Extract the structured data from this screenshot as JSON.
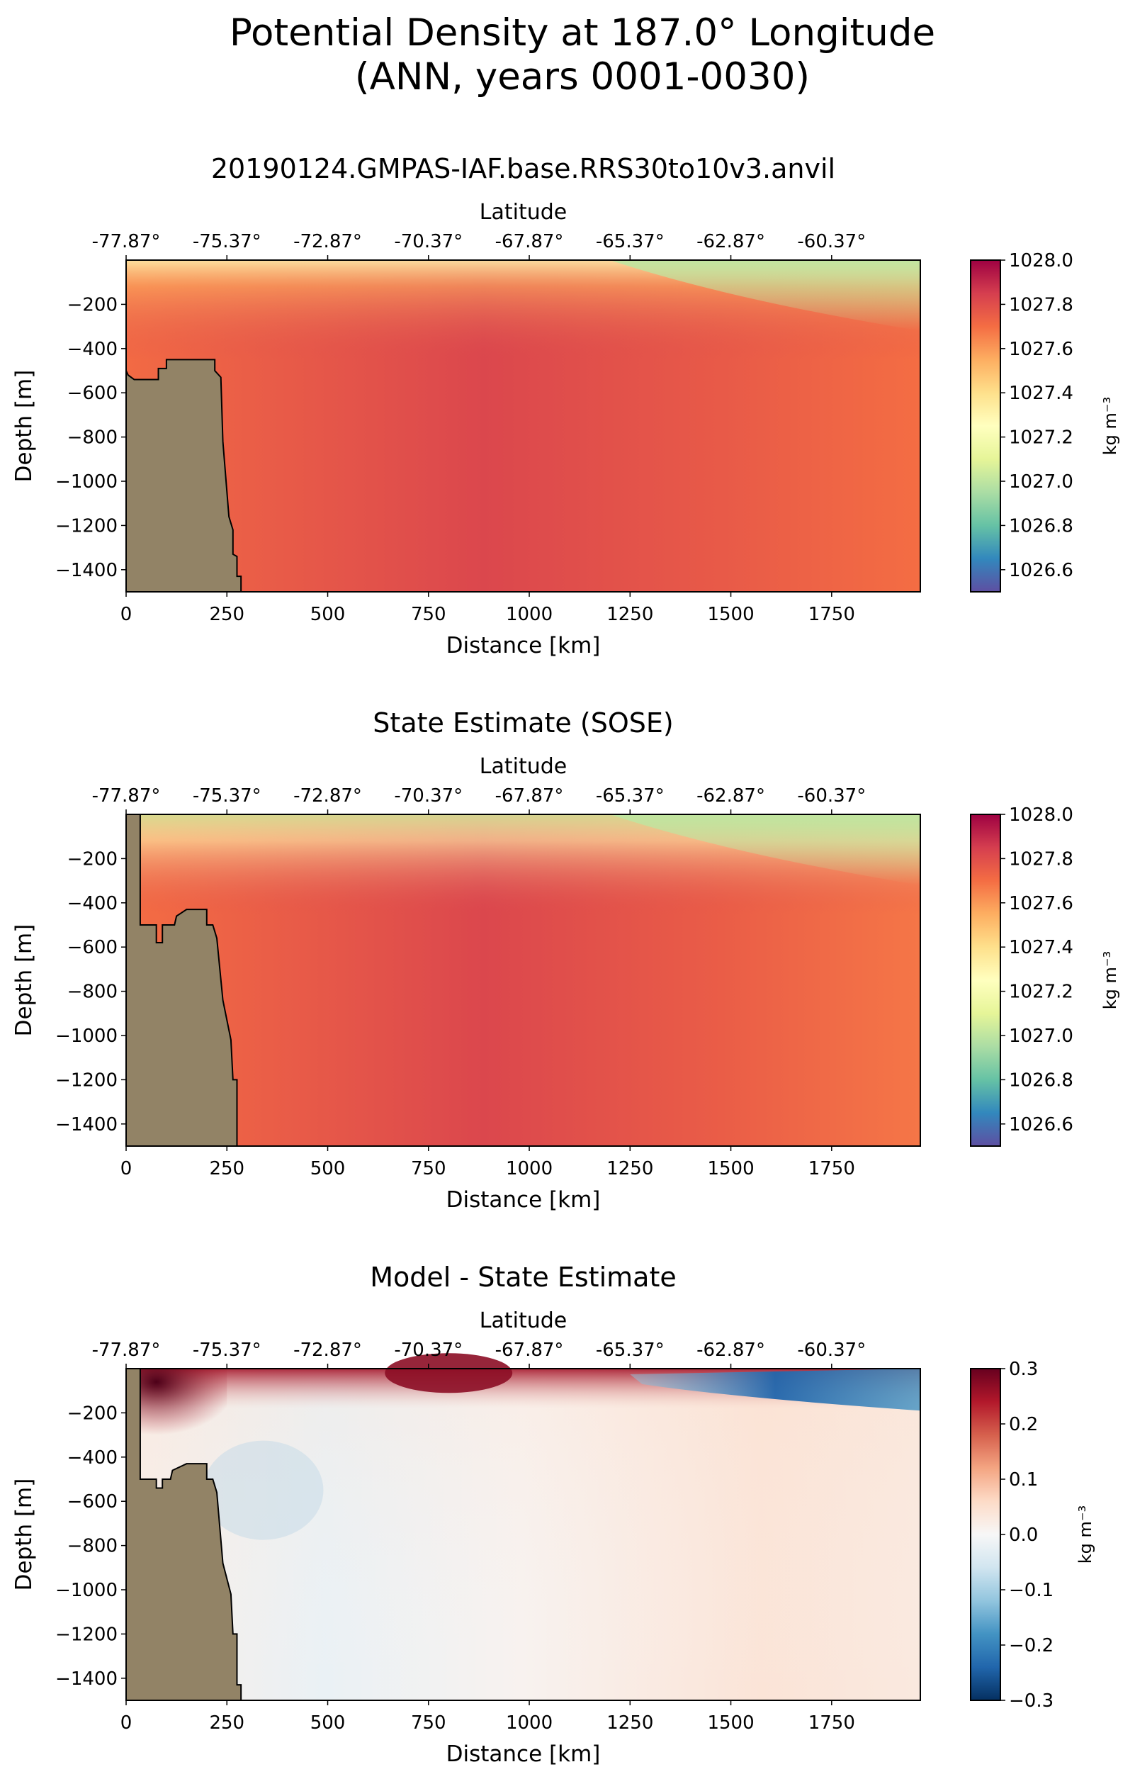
{
  "figure": {
    "title_line1": "Potential Density at 187.0° Longitude",
    "title_line2": "(ANN, years 0001-0030)"
  },
  "chart_data": [
    {
      "type": "heatmap",
      "title": "20190124.GMPAS-IAF.base.RRS30to10v3.anvil",
      "xlabel": "Distance [km]",
      "ylabel": "Depth [m]",
      "top_xlabel": "Latitude",
      "xlim": [
        0,
        1970
      ],
      "ylim": [
        -1500,
        0
      ],
      "xticks": [
        0,
        250,
        500,
        750,
        1000,
        1250,
        1500,
        1750
      ],
      "xtick_labels": [
        "0",
        "250",
        "500",
        "750",
        "1000",
        "1250",
        "1500",
        "1750"
      ],
      "yticks": [
        -200,
        -400,
        -600,
        -800,
        -1000,
        -1200,
        -1400
      ],
      "ytick_labels": [
        "−200",
        "−400",
        "−600",
        "−800",
        "−1000",
        "−1200",
        "−1400"
      ],
      "top_ticks": [
        -77.87,
        -75.37,
        -72.87,
        -70.37,
        -67.87,
        -65.37,
        -62.87,
        -60.37
      ],
      "top_tick_labels": [
        "-77.87°",
        "-75.37°",
        "-72.87°",
        "-70.37°",
        "-67.87°",
        "-65.37°",
        "-62.87°",
        "-60.37°"
      ],
      "colorbar": {
        "label": "kg m⁻³",
        "range": [
          1026.5,
          1028.0
        ],
        "colormap": "Spectral_r",
        "ticks": [
          1028.0,
          1027.8,
          1027.6,
          1027.4,
          1027.2,
          1027.0,
          1026.8,
          1026.6
        ],
        "tick_labels": [
          "1028.0",
          "1027.8",
          "1027.6",
          "1027.4",
          "1027.2",
          "1027.0",
          "1026.8",
          "1026.6"
        ]
      },
      "field": {
        "surface_value_west": 1027.6,
        "surface_value_east": 1027.0,
        "deep_value_center": 1027.82,
        "deep_value_east": 1027.7
      },
      "topography_color": "#928366",
      "topography_km_depth": [
        [
          0,
          -500
        ],
        [
          5,
          -520
        ],
        [
          20,
          -540
        ],
        [
          30,
          -540
        ],
        [
          80,
          -540
        ],
        [
          80,
          -490
        ],
        [
          100,
          -490
        ],
        [
          100,
          -450
        ],
        [
          220,
          -450
        ],
        [
          220,
          -500
        ],
        [
          235,
          -530
        ],
        [
          240,
          -820
        ],
        [
          255,
          -1160
        ],
        [
          265,
          -1220
        ],
        [
          265,
          -1330
        ],
        [
          275,
          -1340
        ],
        [
          275,
          -1430
        ],
        [
          285,
          -1430
        ],
        [
          285,
          -1500
        ]
      ]
    },
    {
      "type": "heatmap",
      "title": "State Estimate (SOSE)",
      "xlabel": "Distance [km]",
      "ylabel": "Depth [m]",
      "top_xlabel": "Latitude",
      "xlim": [
        0,
        1970
      ],
      "ylim": [
        -1500,
        0
      ],
      "xticks": [
        0,
        250,
        500,
        750,
        1000,
        1250,
        1500,
        1750
      ],
      "xtick_labels": [
        "0",
        "250",
        "500",
        "750",
        "1000",
        "1250",
        "1500",
        "1750"
      ],
      "yticks": [
        -200,
        -400,
        -600,
        -800,
        -1000,
        -1200,
        -1400
      ],
      "ytick_labels": [
        "−200",
        "−400",
        "−600",
        "−800",
        "−1000",
        "−1200",
        "−1400"
      ],
      "top_ticks": [
        -77.87,
        -75.37,
        -72.87,
        -70.37,
        -67.87,
        -65.37,
        -62.87,
        -60.37
      ],
      "top_tick_labels": [
        "-77.87°",
        "-75.37°",
        "-72.87°",
        "-70.37°",
        "-67.87°",
        "-65.37°",
        "-62.87°",
        "-60.37°"
      ],
      "colorbar": {
        "label": "kg m⁻³",
        "range": [
          1026.5,
          1028.0
        ],
        "colormap": "Spectral_r",
        "ticks": [
          1028.0,
          1027.8,
          1027.6,
          1027.4,
          1027.2,
          1027.0,
          1026.8,
          1026.6
        ],
        "tick_labels": [
          "1028.0",
          "1027.8",
          "1027.6",
          "1027.4",
          "1027.2",
          "1027.0",
          "1026.8",
          "1026.6"
        ]
      },
      "field": {
        "surface_value_west": 1027.1,
        "surface_value_east": 1027.0,
        "deep_value_center": 1027.82,
        "deep_value_east": 1027.68
      },
      "topography_color": "#928366",
      "topography_km_depth": [
        [
          0,
          0
        ],
        [
          35,
          0
        ],
        [
          35,
          -500
        ],
        [
          75,
          -500
        ],
        [
          75,
          -580
        ],
        [
          90,
          -580
        ],
        [
          90,
          -500
        ],
        [
          120,
          -500
        ],
        [
          125,
          -460
        ],
        [
          150,
          -430
        ],
        [
          200,
          -430
        ],
        [
          200,
          -500
        ],
        [
          215,
          -500
        ],
        [
          225,
          -560
        ],
        [
          240,
          -840
        ],
        [
          260,
          -1020
        ],
        [
          265,
          -1200
        ],
        [
          275,
          -1200
        ],
        [
          275,
          -1500
        ]
      ]
    },
    {
      "type": "heatmap",
      "title": "Model - State Estimate",
      "xlabel": "Distance [km]",
      "ylabel": "Depth [m]",
      "top_xlabel": "Latitude",
      "xlim": [
        0,
        1970
      ],
      "ylim": [
        -1500,
        0
      ],
      "xticks": [
        0,
        250,
        500,
        750,
        1000,
        1250,
        1500,
        1750
      ],
      "xtick_labels": [
        "0",
        "250",
        "500",
        "750",
        "1000",
        "1250",
        "1500",
        "1750"
      ],
      "yticks": [
        -200,
        -400,
        -600,
        -800,
        -1000,
        -1200,
        -1400
      ],
      "ytick_labels": [
        "−200",
        "−400",
        "−600",
        "−800",
        "−1000",
        "−1200",
        "−1400"
      ],
      "top_ticks": [
        -77.87,
        -75.37,
        -72.87,
        -70.37,
        -67.87,
        -65.37,
        -62.87,
        -60.37
      ],
      "top_tick_labels": [
        "-77.87°",
        "-75.37°",
        "-72.87°",
        "-70.37°",
        "-67.87°",
        "-65.37°",
        "-62.87°",
        "-60.37°"
      ],
      "colorbar": {
        "label": "kg m⁻³",
        "range": [
          -0.3,
          0.3
        ],
        "colormap": "RdBu_r",
        "ticks": [
          0.3,
          0.2,
          0.1,
          0.0,
          -0.1,
          -0.2,
          -0.3
        ],
        "tick_labels": [
          "0.3",
          "0.2",
          "0.1",
          "0.0",
          "−0.1",
          "−0.2",
          "−0.3"
        ]
      },
      "field": {
        "surface_anomaly_west": 0.3,
        "surface_anomaly_mid": 0.25,
        "surface_anomaly_east": -0.15,
        "deep_anomaly": 0.02
      },
      "topography_color": "#928366",
      "topography_km_depth": [
        [
          0,
          0
        ],
        [
          35,
          0
        ],
        [
          35,
          -500
        ],
        [
          75,
          -500
        ],
        [
          75,
          -540
        ],
        [
          90,
          -540
        ],
        [
          90,
          -500
        ],
        [
          110,
          -500
        ],
        [
          115,
          -460
        ],
        [
          150,
          -430
        ],
        [
          200,
          -430
        ],
        [
          200,
          -500
        ],
        [
          215,
          -500
        ],
        [
          225,
          -560
        ],
        [
          240,
          -880
        ],
        [
          260,
          -1020
        ],
        [
          265,
          -1200
        ],
        [
          275,
          -1200
        ],
        [
          275,
          -1430
        ],
        [
          285,
          -1430
        ],
        [
          285,
          -1500
        ]
      ]
    }
  ]
}
